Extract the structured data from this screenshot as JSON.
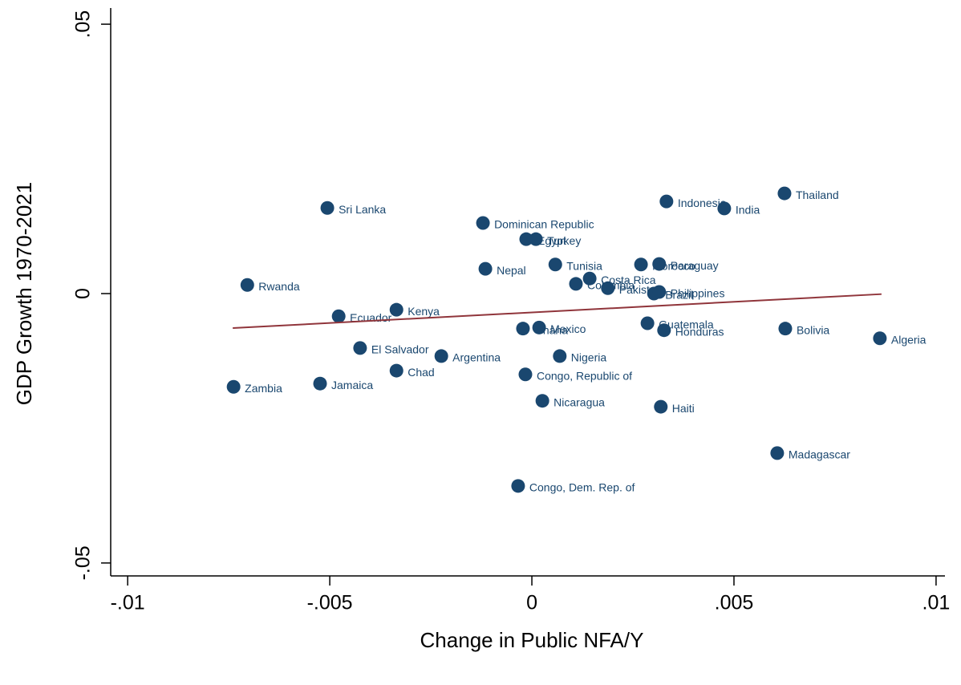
{
  "chart_data": {
    "type": "scatter",
    "x_label": "Change in Public NFA/Y",
    "y_label": "GDP Growth 1970-2021",
    "labels": [
      "Sri Lanka",
      "Rwanda",
      "Zambia",
      "Jamaica",
      "Ecuador",
      "El Salvador",
      "Kenya",
      "Chad",
      "Argentina",
      "Dominican Republic",
      "Nepal",
      "Egypt",
      "Turkey",
      "Ghana",
      "Mexico",
      "Congo, Republic of",
      "Congo, Dem. Rep. of",
      "Nicaragua",
      "Nigeria",
      "Tunisia",
      "Colombia",
      "Costa Rica",
      "Pakistan",
      "Morocco",
      "Paraguay",
      "Brazil",
      "Philippines",
      "Guatemala",
      "Honduras",
      "Haiti",
      "Indonesia",
      "India",
      "Thailand",
      "Bolivia",
      "Madagascar",
      "Algeria"
    ],
    "x": [
      -0.00506,
      -0.00704,
      -0.00738,
      -0.00524,
      -0.00478,
      -0.00425,
      -0.00335,
      -0.00335,
      -0.00224,
      -0.00121,
      -0.00115,
      -0.00014,
      0.0001,
      -0.00022,
      0.00018,
      -0.00016,
      -0.00034,
      0.00026,
      0.00069,
      0.00058,
      0.00109,
      0.00143,
      0.00188,
      0.0027,
      0.00315,
      0.00302,
      0.00315,
      0.00286,
      0.00327,
      0.00319,
      0.00333,
      0.00476,
      0.00625,
      0.00627,
      0.00607,
      0.00861
    ],
    "values": [
      0.0159,
      0.0016,
      -0.0173,
      -0.0167,
      -0.0042,
      -0.0101,
      -0.003,
      -0.0143,
      -0.0116,
      0.0131,
      0.0046,
      0.0101,
      0.0101,
      -0.0065,
      -0.0063,
      -0.015,
      -0.0357,
      -0.0199,
      -0.0116,
      0.0054,
      0.0018,
      0.0028,
      0.001,
      0.0054,
      0.0055,
      0.0,
      0.0003,
      -0.0055,
      -0.0068,
      -0.021,
      0.0171,
      0.0158,
      0.0186,
      -0.0065,
      -0.0296,
      -0.0083
    ],
    "color": "#1a476f",
    "fit": {
      "x": [
        -0.0074,
        0.00865
      ],
      "y": [
        -0.0064,
        -0.0001
      ],
      "color": "#90353b"
    },
    "xlim": [
      -0.01042,
      0.01022
    ],
    "ylim": [
      -0.0524,
      0.053
    ],
    "xticks": [
      {
        "value": -0.01,
        "label": "-.01"
      },
      {
        "value": -0.005,
        "label": "-.005"
      },
      0,
      {
        "value": 0.005,
        "label": ".005"
      },
      {
        "value": 0.01,
        "label": ".01"
      }
    ],
    "yticks": [
      {
        "value": -0.05,
        "label": "-.05"
      },
      0,
      {
        "value": 0.05,
        "label": ".05"
      }
    ]
  }
}
